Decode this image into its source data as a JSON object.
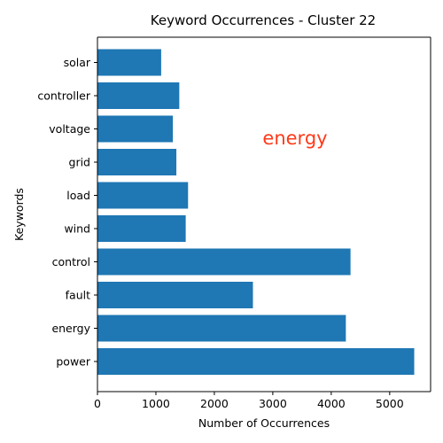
{
  "chart_data": {
    "type": "bar",
    "orientation": "horizontal",
    "title": "Keyword Occurrences - Cluster 22",
    "xlabel": "Number of Occurrences",
    "ylabel": "Keywords",
    "categories": [
      "power",
      "energy",
      "fault",
      "control",
      "wind",
      "load",
      "grid",
      "voltage",
      "controller",
      "solar"
    ],
    "values": [
      5420,
      4250,
      2660,
      4330,
      1510,
      1550,
      1350,
      1290,
      1400,
      1090
    ],
    "xlim": [
      0,
      5700
    ],
    "xticks": [
      "0",
      "1000",
      "2000",
      "3000",
      "4000",
      "5000"
    ],
    "grid": false,
    "bar_color": "#1f77b4",
    "annotation": {
      "text": "energy",
      "color": "#ff3a1a"
    }
  }
}
